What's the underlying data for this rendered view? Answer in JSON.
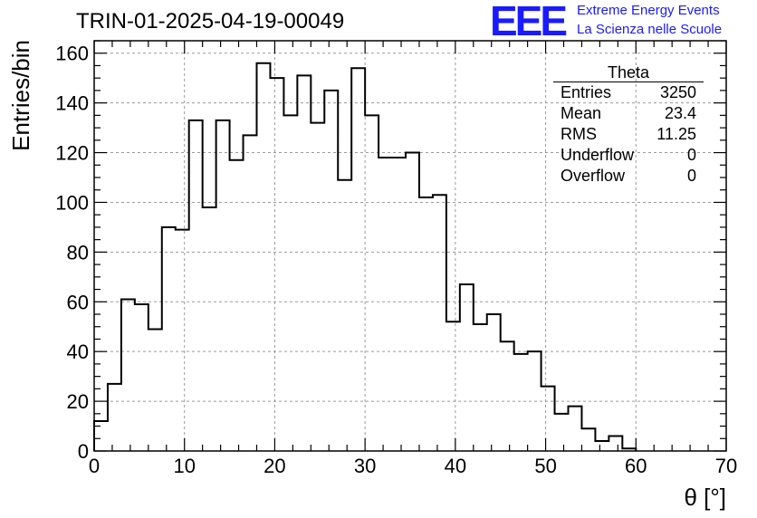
{
  "header": {
    "title": "TRIN-01-2025-04-19-00049",
    "logo_text": "EEE",
    "logo_line1": "Extreme Energy Events",
    "logo_line2": "La Scienza nelle Scuole",
    "logo_color": "#1a1aff"
  },
  "stats": {
    "title": "Theta",
    "rows": [
      {
        "label": "Entries",
        "value": "3250"
      },
      {
        "label": "Mean",
        "value": "23.4"
      },
      {
        "label": "RMS",
        "value": "11.25"
      },
      {
        "label": "Underflow",
        "value": "0"
      },
      {
        "label": "Overflow",
        "value": "0"
      }
    ]
  },
  "chart_data": {
    "type": "bar",
    "style": "step-histogram",
    "title": "TRIN-01-2025-04-19-00049",
    "xlabel": "θ [°]",
    "ylabel": "Entries/bin",
    "xlim": [
      0,
      70
    ],
    "ylim": [
      0,
      165
    ],
    "bin_width": 1.5,
    "bin_start": 0,
    "values": [
      12,
      27,
      61,
      59,
      49,
      90,
      89,
      133,
      98,
      133,
      117,
      127,
      156,
      150,
      135,
      151,
      132,
      145,
      109,
      154,
      135,
      118,
      118,
      120,
      102,
      103,
      52,
      67,
      51,
      55,
      44,
      39,
      40,
      26,
      15,
      18,
      9,
      4,
      6,
      1
    ],
    "x_ticks": [
      0,
      10,
      20,
      30,
      40,
      50,
      60,
      70
    ],
    "y_ticks": [
      0,
      20,
      40,
      60,
      80,
      100,
      120,
      140,
      160
    ],
    "grid": true,
    "line_color": "#000000"
  }
}
